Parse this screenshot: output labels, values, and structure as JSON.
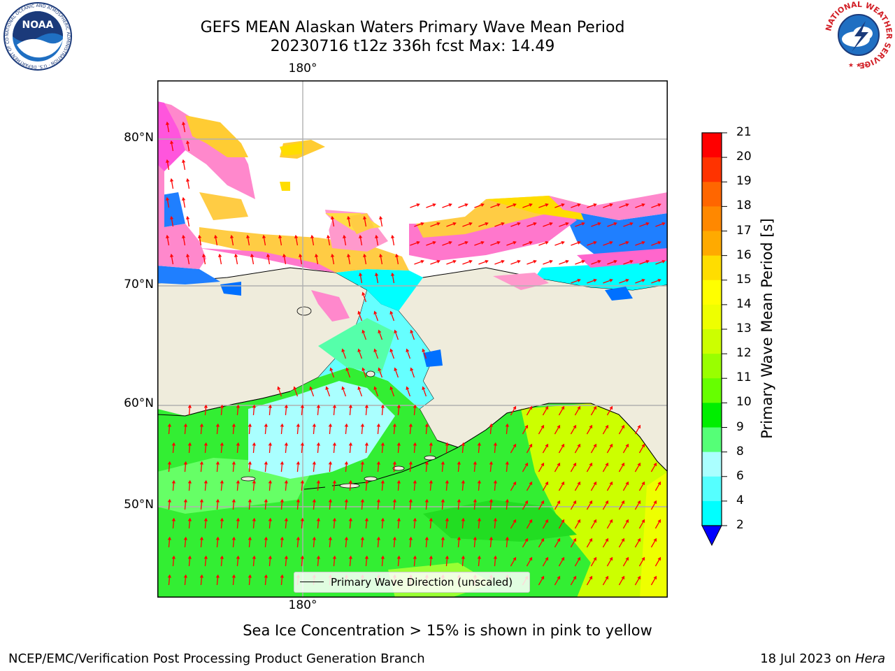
{
  "title": {
    "line1": "GEFS MEAN Alaskan Waters Primary Wave Mean Period",
    "line2": "20230716 t12z 336h fcst   Max: 14.49"
  },
  "map": {
    "lon_label_top": "180°",
    "lon_label_bottom": "180°",
    "lat_labels": [
      "80°N",
      "70°N",
      "60°N",
      "50°N"
    ],
    "legend_text": "Primary Wave Direction (unscaled)",
    "colors": {
      "land": "#efecdc",
      "ocean_ice_free": "#ffffff",
      "arrow": "#ff0000",
      "coast": "#000000",
      "grid": "#b0b0b0"
    }
  },
  "colorbar": {
    "label": "Primary Wave Mean Period [s]",
    "ticks": [
      "21",
      "20",
      "19",
      "18",
      "17",
      "16",
      "15",
      "14",
      "13",
      "12",
      "11",
      "10",
      "9",
      "8",
      "6",
      "4",
      "2"
    ],
    "colors": [
      "#ff0000",
      "#ff3300",
      "#ff6600",
      "#ff8800",
      "#ffaa00",
      "#ffdd00",
      "#ffff00",
      "#eeff00",
      "#ccff00",
      "#99ff00",
      "#66ff00",
      "#00ee00",
      "#55ff77",
      "#aaffff",
      "#55ffff",
      "#00ffff",
      "#0077ff"
    ],
    "extend_color": "#0000ff"
  },
  "caption": "Sea Ice Concentration > 15% is shown in pink to yellow",
  "footer": {
    "left": "NCEP/EMC/Verification Post Processing Product Generation Branch",
    "right_prefix": "18 Jul 2023 on ",
    "right_italic": "Hera"
  },
  "logos": {
    "noaa_text": "NOAA",
    "noaa_ring": "NATIONAL OCEANIC AND ATMOSPHERIC ADMINISTRATION · U.S. DEPARTMENT OF COMMERCE",
    "nws_ring": "NATIONAL WEATHER SERVICE"
  }
}
